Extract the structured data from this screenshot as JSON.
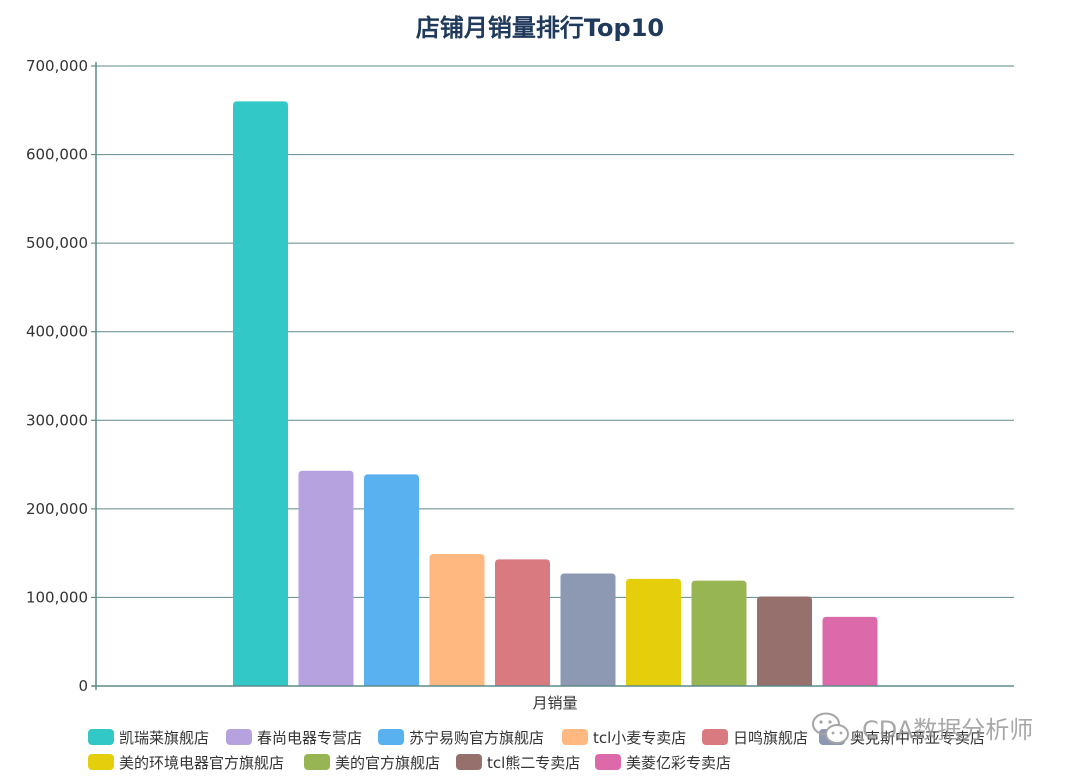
{
  "chart_data": {
    "type": "bar",
    "title": "店铺月销量排行Top10",
    "xlabel": "月销量",
    "ylabel": "",
    "ylim": [
      0,
      700000
    ],
    "yticks": [
      0,
      100000,
      200000,
      300000,
      400000,
      500000,
      600000,
      700000
    ],
    "ytick_labels": [
      "0",
      "100,000",
      "200,000",
      "300,000",
      "400,000",
      "500,000",
      "600,000",
      "700,000"
    ],
    "grid": true,
    "legend_position": "bottom",
    "series": [
      {
        "name": "凯瑞莱旗舰店",
        "value": 660000,
        "color": "#32c8c8"
      },
      {
        "name": "春尚电器专营店",
        "value": 243000,
        "color": "#b6a2de"
      },
      {
        "name": "苏宁易购官方旗舰店",
        "value": 239000,
        "color": "#5ab1ef"
      },
      {
        "name": "tcl小麦专卖店",
        "value": 149000,
        "color": "#ffb980"
      },
      {
        "name": "日鸣旗舰店",
        "value": 143000,
        "color": "#d87a80"
      },
      {
        "name": "奥克斯中帝亚专卖店",
        "value": 127000,
        "color": "#8d98b3"
      },
      {
        "name": "美的环境电器官方旗舰店",
        "value": 121000,
        "color": "#e5cf0d"
      },
      {
        "name": "美的官方旗舰店",
        "value": 119000,
        "color": "#97b552"
      },
      {
        "name": "tcl熊二专卖店",
        "value": 101000,
        "color": "#95706d"
      },
      {
        "name": "美菱亿彩专卖店",
        "value": 78000,
        "color": "#dc69aa"
      }
    ]
  },
  "watermark": {
    "text": "CDA数据分析师",
    "icon": "wechat-icon"
  }
}
